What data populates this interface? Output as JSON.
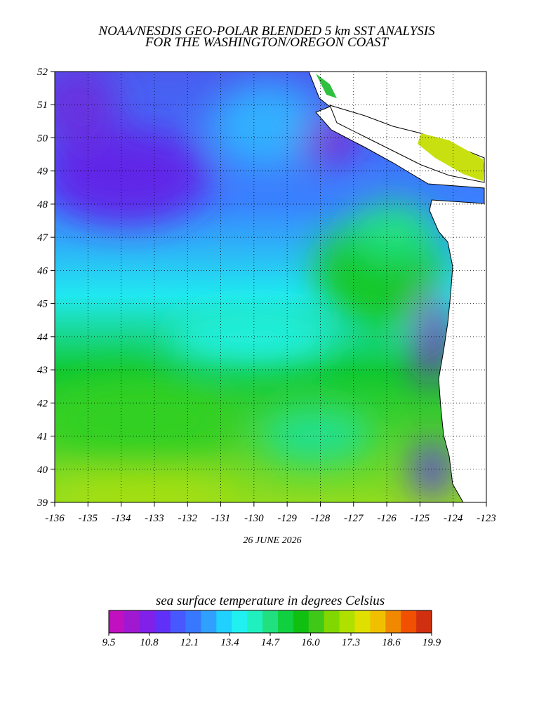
{
  "title": [
    "NOAA/NESDIS GEO-POLAR BLENDED 5 km SST ANALYSIS",
    "FOR THE WASHINGTON/OREGON COAST"
  ],
  "map": {
    "xlim": [
      -136,
      -123
    ],
    "ylim": [
      39,
      52
    ],
    "xticks": [
      -136,
      -135,
      -134,
      -133,
      -132,
      -131,
      -130,
      -129,
      -128,
      -127,
      -126,
      -125,
      -124,
      -123
    ],
    "yticks": [
      39,
      40,
      41,
      42,
      43,
      44,
      45,
      46,
      47,
      48,
      49,
      50,
      51,
      52
    ],
    "grid": true
  },
  "date": "26 JUNE 2026",
  "colorbar": {
    "label": "sea surface temperature in degrees Celsius",
    "lim": [
      9.5,
      19.9
    ],
    "ticks": [
      9.5,
      10.8,
      12.1,
      13.4,
      14.7,
      {
        "value": 16,
        "label": "16.0"
      },
      17.3,
      18.6,
      19.9
    ],
    "colors": [
      "#c010c0",
      "#a018d0",
      "#8020e8",
      "#6030f8",
      "#4858ff",
      "#3878ff",
      "#30a0ff",
      "#20d0ff",
      "#20f0f0",
      "#20f0c0",
      "#20e080",
      "#10d040",
      "#10c010",
      "#40c818",
      "#80d800",
      "#b0e000",
      "#e0e000",
      "#f0c000",
      "#f08800",
      "#f05000",
      "#d03010"
    ]
  }
}
